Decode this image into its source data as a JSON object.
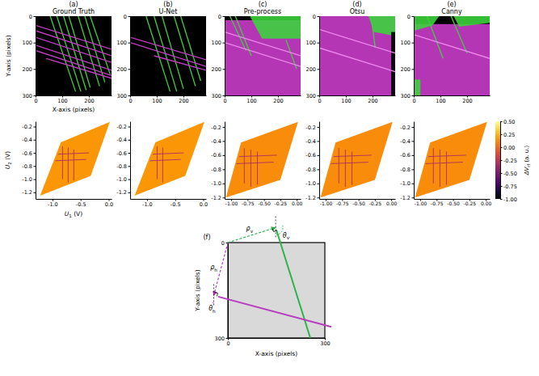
{
  "chart_data": [
    {
      "type": "image",
      "panel": "(a)",
      "title": "Ground Truth",
      "x_label": "X-axis (pixels)",
      "y_label": "Y-axis (pixels)",
      "xlim": [
        0,
        285
      ],
      "ylim": [
        0,
        300
      ],
      "xticks": [
        0,
        100,
        200
      ],
      "yticks": [
        0,
        100,
        200,
        300
      ],
      "background": "#000000",
      "series": [
        {
          "color": "#3cd23c",
          "segments": [
            [
              55,
              0,
              150,
              285
            ],
            [
              80,
              0,
              170,
              285
            ],
            [
              105,
              0,
              190,
              280
            ],
            [
              125,
              0,
              205,
              270
            ],
            [
              160,
              0,
              240,
              265
            ],
            [
              185,
              0,
              260,
              250
            ],
            [
              205,
              0,
              280,
              220
            ]
          ]
        },
        {
          "color": "#c83cc8",
          "segments": [
            [
              0,
              35,
              285,
              125
            ],
            [
              0,
              55,
              285,
              150
            ],
            [
              0,
              80,
              285,
              175
            ],
            [
              0,
              110,
              285,
              205
            ],
            [
              0,
              130,
              285,
              225
            ],
            [
              40,
              160,
              285,
              235
            ]
          ]
        }
      ]
    },
    {
      "type": "image",
      "panel": "(b)",
      "title": "U-Net",
      "xlim": [
        0,
        285
      ],
      "ylim": [
        0,
        300
      ],
      "xticks": [
        0,
        100,
        200
      ],
      "yticks": [
        0,
        100,
        200,
        300
      ],
      "background": "#000000",
      "series": [
        {
          "color": "#3cd23c",
          "segments": [
            [
              60,
              0,
              150,
              285
            ],
            [
              90,
              0,
              175,
              285
            ],
            [
              120,
              0,
              200,
              275
            ],
            [
              165,
              0,
              245,
              265
            ],
            [
              190,
              0,
              265,
              245
            ]
          ]
        },
        {
          "color": "#c83cc8",
          "segments": [
            [
              0,
              80,
              285,
              165
            ],
            [
              0,
              100,
              285,
              190
            ],
            [
              90,
              150,
              285,
              205
            ]
          ]
        }
      ]
    },
    {
      "type": "image",
      "panel": "(c)",
      "title": "Pre-process",
      "xlim": [
        0,
        285
      ],
      "ylim": [
        0,
        300
      ],
      "xticks": [
        0,
        100,
        200
      ],
      "yticks": [
        0,
        100,
        200,
        300
      ],
      "background": "#000000",
      "regions": [
        {
          "color": "#c83cc8",
          "points": [
            [
              0,
              15
            ],
            [
              285,
              15
            ],
            [
              285,
              300
            ],
            [
              0,
              300
            ]
          ]
        },
        {
          "color": "#3cd23c",
          "points": [
            [
              95,
              0
            ],
            [
              285,
              0
            ],
            [
              285,
              85
            ],
            [
              140,
              85
            ]
          ]
        }
      ],
      "series": [
        {
          "color": "#3cd23c",
          "segments": [
            [
              20,
              0,
              80,
              130
            ],
            [
              40,
              0,
              100,
              150
            ],
            [
              230,
              90,
              270,
              200
            ]
          ]
        },
        {
          "color": "#ee88ee",
          "segments": [
            [
              0,
              60,
              285,
              150
            ],
            [
              0,
              100,
              285,
              190
            ]
          ]
        }
      ]
    },
    {
      "type": "image",
      "panel": "(d)",
      "title": "Otsu",
      "xlim": [
        0,
        285
      ],
      "ylim": [
        0,
        300
      ],
      "xticks": [
        0,
        100,
        200
      ],
      "yticks": [
        0,
        100,
        200,
        300
      ],
      "background": "#000000",
      "regions": [
        {
          "color": "#c83cc8",
          "points": [
            [
              0,
              0
            ],
            [
              285,
              0
            ],
            [
              285,
              300
            ],
            [
              0,
              300
            ]
          ]
        },
        {
          "color": "#3cd23c",
          "points": [
            [
              185,
              0
            ],
            [
              285,
              0
            ],
            [
              285,
              75
            ],
            [
              205,
              60
            ]
          ]
        },
        {
          "color": "#000000",
          "points": [
            [
              270,
              60
            ],
            [
              285,
              60
            ],
            [
              285,
              300
            ],
            [
              270,
              300
            ]
          ]
        }
      ],
      "series": [
        {
          "color": "#3cd23c",
          "segments": [
            [
              195,
              0,
              210,
              120
            ]
          ]
        },
        {
          "color": "#ee88ee",
          "segments": [
            [
              0,
              50,
              285,
              140
            ],
            [
              0,
              120,
              285,
              210
            ]
          ]
        }
      ]
    },
    {
      "type": "image",
      "panel": "(e)",
      "title": "Canny",
      "xlim": [
        0,
        285
      ],
      "ylim": [
        0,
        300
      ],
      "xticks": [
        0,
        100,
        200
      ],
      "yticks": [
        0,
        100,
        200,
        300
      ],
      "background": "#000000",
      "regions": [
        {
          "color": "#c83cc8",
          "points": [
            [
              0,
              30
            ],
            [
              285,
              30
            ],
            [
              285,
              300
            ],
            [
              0,
              300
            ]
          ]
        },
        {
          "color": "#3cd23c",
          "points": [
            [
              0,
              0
            ],
            [
              95,
              0
            ],
            [
              70,
              35
            ],
            [
              0,
              55
            ]
          ]
        },
        {
          "color": "#3cd23c",
          "points": [
            [
              150,
              0
            ],
            [
              285,
              0
            ],
            [
              285,
              25
            ],
            [
              170,
              40
            ]
          ]
        },
        {
          "color": "#3cd23c",
          "points": [
            [
              0,
              240
            ],
            [
              25,
              240
            ],
            [
              25,
              300
            ],
            [
              0,
              300
            ]
          ]
        }
      ],
      "series": [
        {
          "color": "#3cd23c",
          "segments": [
            [
              50,
              0,
              110,
              160
            ],
            [
              140,
              0,
              200,
              140
            ]
          ]
        },
        {
          "color": "#ee88ee",
          "segments": [
            [
              0,
              70,
              285,
              160
            ]
          ]
        }
      ]
    },
    {
      "type": "heatmap",
      "x_label": {
        "main": "U",
        "sub": "1",
        "unit": " (V)"
      },
      "y_label": {
        "main": "U",
        "sub": "2",
        "unit": " (V)"
      },
      "xlim": [
        -1.3,
        0.05
      ],
      "ylim": [
        -1.3,
        -0.12
      ],
      "xticks": [
        {
          "value": -1,
          "label": "-1.0"
        },
        -0.5,
        {
          "value": 0,
          "label": "0.0"
        }
      ],
      "yticks": [
        -1.2,
        {
          "value": -1,
          "label": "-1.0"
        },
        -0.8,
        -0.6,
        -0.4,
        -0.2
      ],
      "polygon": [
        [
          -0.85,
          -0.44
        ],
        [
          0.02,
          -0.13
        ],
        [
          -0.32,
          -0.95
        ],
        [
          -1.22,
          -1.25
        ]
      ],
      "fill_value": 0.15,
      "lines": [
        [
          -0.82,
          -0.5,
          -0.82,
          -1.0
        ],
        [
          -0.72,
          -0.52,
          -0.72,
          -1.05
        ],
        [
          -0.62,
          -0.55,
          -0.62,
          -1.02
        ],
        [
          -0.95,
          -0.72,
          -0.4,
          -0.7
        ],
        [
          -0.9,
          -0.62,
          -0.35,
          -0.6
        ]
      ],
      "line_value": -0.3
    },
    {
      "type": "heatmap",
      "xlim": [
        -1.3,
        0.05
      ],
      "ylim": [
        -1.3,
        -0.12
      ],
      "xticks": [
        {
          "value": -1,
          "label": "-1.0"
        },
        -0.5,
        {
          "value": 0,
          "label": "0.0"
        }
      ],
      "yticks": [
        -1.2,
        {
          "value": -1,
          "label": "-1.0"
        },
        -0.8,
        -0.6,
        -0.4,
        -0.2
      ],
      "polygon": [
        [
          -0.85,
          -0.44
        ],
        [
          0.02,
          -0.13
        ],
        [
          -0.32,
          -0.95
        ],
        [
          -1.22,
          -1.25
        ]
      ],
      "fill_value": 0.15,
      "lines": [
        [
          -0.82,
          -0.5,
          -0.82,
          -1.0
        ],
        [
          -0.72,
          -0.52,
          -0.72,
          -1.05
        ],
        [
          -0.95,
          -0.72,
          -0.4,
          -0.7
        ],
        [
          -0.9,
          -0.62,
          -0.35,
          -0.6
        ]
      ],
      "line_value": -0.3
    },
    {
      "type": "heatmap",
      "xlim": [
        -1.1,
        0.06
      ],
      "ylim": [
        -1.22,
        -0.12
      ],
      "xticks": [
        {
          "value": -1,
          "label": "-1.00"
        },
        -0.75,
        {
          "value": -0.5,
          "label": "-0.50"
        },
        -0.25,
        {
          "value": 0,
          "label": "0.00"
        }
      ],
      "yticks": [
        -1.2,
        {
          "value": -1,
          "label": "-1.0"
        },
        -0.8,
        -0.6,
        -0.4,
        -0.2
      ],
      "polygon": [
        [
          -0.85,
          -0.42
        ],
        [
          0.02,
          -0.13
        ],
        [
          -0.25,
          -0.95
        ],
        [
          -1.08,
          -1.2
        ]
      ],
      "fill_value": 0.12,
      "lines": [
        [
          -0.8,
          -0.5,
          -0.8,
          -1.0
        ],
        [
          -0.7,
          -0.52,
          -0.7,
          -1.05
        ],
        [
          -0.6,
          -0.55,
          -0.6,
          -1.02
        ],
        [
          -0.92,
          -0.72,
          -0.35,
          -0.7
        ],
        [
          -0.88,
          -0.62,
          -0.3,
          -0.6
        ]
      ],
      "line_value": -0.3
    },
    {
      "type": "heatmap",
      "xlim": [
        -1.1,
        0.06
      ],
      "ylim": [
        -1.22,
        -0.12
      ],
      "xticks": [
        {
          "value": -1,
          "label": "-1.00"
        },
        -0.75,
        {
          "value": -0.5,
          "label": "-0.50"
        },
        -0.25,
        {
          "value": 0,
          "label": "0.00"
        }
      ],
      "yticks": [
        -1.2,
        {
          "value": -1,
          "label": "-1.0"
        },
        -0.8,
        -0.6,
        -0.4,
        -0.2
      ],
      "polygon": [
        [
          -0.85,
          -0.42
        ],
        [
          0.02,
          -0.13
        ],
        [
          -0.25,
          -0.95
        ],
        [
          -1.08,
          -1.2
        ]
      ],
      "fill_value": 0.12,
      "lines": [
        [
          -0.8,
          -0.5,
          -0.8,
          -1.0
        ],
        [
          -0.7,
          -0.52,
          -0.7,
          -1.05
        ],
        [
          -0.6,
          -0.55,
          -0.6,
          -1.02
        ],
        [
          -0.92,
          -0.72,
          -0.35,
          -0.7
        ],
        [
          -0.88,
          -0.62,
          -0.3,
          -0.6
        ]
      ],
      "line_value": -0.3
    },
    {
      "type": "heatmap",
      "xlim": [
        -1.1,
        0.06
      ],
      "ylim": [
        -1.22,
        -0.12
      ],
      "xticks": [
        {
          "value": -1,
          "label": "-1.00"
        },
        -0.75,
        {
          "value": -0.5,
          "label": "-0.50"
        },
        -0.25,
        {
          "value": 0,
          "label": "0.00"
        }
      ],
      "yticks": [
        -1.2,
        {
          "value": -1,
          "label": "-1.0"
        },
        -0.8,
        -0.6,
        -0.4,
        -0.2
      ],
      "polygon": [
        [
          -0.85,
          -0.42
        ],
        [
          0.02,
          -0.13
        ],
        [
          -0.25,
          -0.95
        ],
        [
          -1.08,
          -1.2
        ]
      ],
      "fill_value": 0.12,
      "lines": [
        [
          -0.8,
          -0.5,
          -0.8,
          -1.0
        ],
        [
          -0.7,
          -0.52,
          -0.7,
          -1.05
        ],
        [
          -0.6,
          -0.55,
          -0.6,
          -1.02
        ],
        [
          -0.92,
          -0.72,
          -0.35,
          -0.7
        ],
        [
          -0.88,
          -0.62,
          -0.3,
          -0.6
        ]
      ],
      "line_value": -0.3
    }
  ],
  "colorbar": {
    "label": {
      "main": "ΔV",
      "sub": "rf",
      "unit": " (a. u.)"
    },
    "range": [
      -1,
      0.5
    ],
    "ticks": [
      {
        "value": 0.5,
        "label": "0.50"
      },
      {
        "value": 0.25,
        "label": "0.25"
      },
      {
        "value": 0,
        "label": "0.00"
      },
      {
        "value": -0.25,
        "label": "-0.25"
      },
      {
        "value": -0.5,
        "label": "-0.50"
      },
      {
        "value": -0.75,
        "label": "-0.75"
      },
      {
        "value": -1,
        "label": "-1.00"
      }
    ]
  },
  "diagram": {
    "panel": "(f)",
    "x_label": "X-axis (pixels)",
    "y_label": "Y-axis (pixels)",
    "range": [
      0,
      300
    ],
    "xticks": [
      0,
      300
    ],
    "yticks": [
      0,
      300
    ],
    "lines": [
      {
        "color": "#2db34a",
        "points": [
          [
            150,
            -40
          ],
          [
            255,
            300
          ]
        ],
        "rho": {
          "symbol": "ρ",
          "sub": "v"
        },
        "theta": {
          "symbol": "θ",
          "sub": "v"
        }
      },
      {
        "color": "#b83cc0",
        "points": [
          [
            -30,
            170
          ],
          [
            320,
            265
          ]
        ],
        "rho": {
          "symbol": "ρ",
          "sub": "h"
        },
        "theta": {
          "symbol": "θ",
          "sub": "h"
        }
      }
    ]
  }
}
